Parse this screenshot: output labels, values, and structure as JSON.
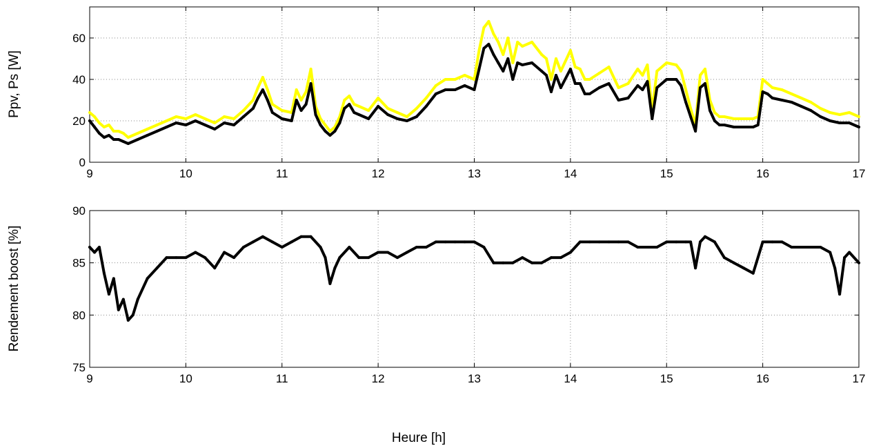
{
  "figure": {
    "xlabel": "Heure [h]"
  },
  "chart_data": [
    {
      "type": "line",
      "ylabel": "Ppv, Ps [W]",
      "xlim": [
        9,
        17
      ],
      "ylim": [
        0,
        75
      ],
      "xticks": [
        9,
        10,
        11,
        12,
        13,
        14,
        15,
        16,
        17
      ],
      "yticks": [
        0,
        20,
        40,
        60
      ],
      "grid": true,
      "colors": [
        "#ffff00",
        "#000000"
      ],
      "series": [
        {
          "x": [
            9.0,
            9.05,
            9.1,
            9.15,
            9.2,
            9.25,
            9.3,
            9.35,
            9.4,
            9.5,
            9.6,
            9.7,
            9.8,
            9.9,
            10.0,
            10.1,
            10.2,
            10.3,
            10.4,
            10.5,
            10.6,
            10.7,
            10.75,
            10.8,
            10.85,
            10.9,
            11.0,
            11.1,
            11.15,
            11.2,
            11.25,
            11.3,
            11.35,
            11.4,
            11.45,
            11.5,
            11.55,
            11.6,
            11.65,
            11.7,
            11.75,
            11.8,
            11.9,
            12.0,
            12.1,
            12.2,
            12.3,
            12.4,
            12.5,
            12.6,
            12.7,
            12.8,
            12.9,
            13.0,
            13.05,
            13.1,
            13.15,
            13.2,
            13.25,
            13.3,
            13.35,
            13.4,
            13.45,
            13.5,
            13.6,
            13.7,
            13.75,
            13.8,
            13.85,
            13.9,
            14.0,
            14.05,
            14.1,
            14.15,
            14.2,
            14.3,
            14.4,
            14.5,
            14.6,
            14.7,
            14.75,
            14.8,
            14.85,
            14.9,
            15.0,
            15.1,
            15.15,
            15.2,
            15.25,
            15.3,
            15.35,
            15.4,
            15.45,
            15.5,
            15.55,
            15.6,
            15.7,
            15.8,
            15.9,
            15.95,
            16.0,
            16.05,
            16.1,
            16.2,
            16.3,
            16.4,
            16.5,
            16.6,
            16.7,
            16.8,
            16.9,
            17.0
          ],
          "y": [
            24,
            22,
            19,
            17,
            18,
            15,
            15,
            14,
            12,
            14,
            16,
            18,
            20,
            22,
            21,
            23,
            21,
            19,
            22,
            21,
            25,
            30,
            36,
            41,
            35,
            28,
            25,
            24,
            35,
            30,
            34,
            45,
            27,
            21,
            18,
            15,
            17,
            22,
            30,
            32,
            28,
            27,
            25,
            31,
            26,
            24,
            22,
            26,
            31,
            37,
            40,
            40,
            42,
            40,
            54,
            65,
            68,
            62,
            58,
            52,
            60,
            48,
            58,
            56,
            58,
            52,
            50,
            40,
            50,
            44,
            54,
            46,
            45,
            40,
            40,
            43,
            46,
            36,
            38,
            45,
            42,
            47,
            25,
            44,
            48,
            47,
            44,
            35,
            26,
            18,
            42,
            45,
            30,
            24,
            22,
            22,
            21,
            21,
            21,
            22,
            40,
            38,
            36,
            35,
            33,
            31,
            29,
            26,
            24,
            23,
            24,
            22
          ]
        },
        {
          "x": [
            9.0,
            9.05,
            9.1,
            9.15,
            9.2,
            9.25,
            9.3,
            9.35,
            9.4,
            9.5,
            9.6,
            9.7,
            9.8,
            9.9,
            10.0,
            10.1,
            10.2,
            10.3,
            10.4,
            10.5,
            10.6,
            10.7,
            10.75,
            10.8,
            10.85,
            10.9,
            11.0,
            11.1,
            11.15,
            11.2,
            11.25,
            11.3,
            11.35,
            11.4,
            11.45,
            11.5,
            11.55,
            11.6,
            11.65,
            11.7,
            11.75,
            11.8,
            11.9,
            12.0,
            12.1,
            12.2,
            12.3,
            12.4,
            12.5,
            12.6,
            12.7,
            12.8,
            12.9,
            13.0,
            13.05,
            13.1,
            13.15,
            13.2,
            13.25,
            13.3,
            13.35,
            13.4,
            13.45,
            13.5,
            13.6,
            13.7,
            13.75,
            13.8,
            13.85,
            13.9,
            14.0,
            14.05,
            14.1,
            14.15,
            14.2,
            14.3,
            14.4,
            14.5,
            14.6,
            14.7,
            14.75,
            14.8,
            14.85,
            14.9,
            15.0,
            15.1,
            15.15,
            15.2,
            15.25,
            15.3,
            15.35,
            15.4,
            15.45,
            15.5,
            15.55,
            15.6,
            15.7,
            15.8,
            15.9,
            15.95,
            16.0,
            16.05,
            16.1,
            16.2,
            16.3,
            16.4,
            16.5,
            16.6,
            16.7,
            16.8,
            16.9,
            17.0
          ],
          "y": [
            20,
            17,
            14,
            12,
            13,
            11,
            11,
            10,
            9,
            11,
            13,
            15,
            17,
            19,
            18,
            20,
            18,
            16,
            19,
            18,
            22,
            26,
            31,
            35,
            30,
            24,
            21,
            20,
            30,
            25,
            28,
            38,
            23,
            18,
            15,
            13,
            15,
            19,
            26,
            28,
            24,
            23,
            21,
            27,
            23,
            21,
            20,
            22,
            27,
            33,
            35,
            35,
            37,
            35,
            45,
            55,
            57,
            52,
            48,
            44,
            50,
            40,
            48,
            47,
            48,
            44,
            42,
            34,
            42,
            36,
            45,
            38,
            38,
            33,
            33,
            36,
            38,
            30,
            31,
            37,
            35,
            39,
            21,
            36,
            40,
            40,
            37,
            29,
            22,
            15,
            36,
            38,
            25,
            20,
            18,
            18,
            17,
            17,
            17,
            18,
            34,
            33,
            31,
            30,
            29,
            27,
            25,
            22,
            20,
            19,
            19,
            17
          ]
        }
      ]
    },
    {
      "type": "line",
      "ylabel": "Rendement boost [%]",
      "xlim": [
        9,
        17
      ],
      "ylim": [
        75,
        90
      ],
      "xticks": [
        9,
        10,
        11,
        12,
        13,
        14,
        15,
        16,
        17
      ],
      "yticks": [
        75,
        80,
        85,
        90
      ],
      "grid": true,
      "colors": [
        "#000000"
      ],
      "series": [
        {
          "x": [
            9.0,
            9.05,
            9.1,
            9.15,
            9.2,
            9.25,
            9.3,
            9.35,
            9.4,
            9.45,
            9.5,
            9.6,
            9.7,
            9.8,
            9.9,
            10.0,
            10.1,
            10.2,
            10.3,
            10.4,
            10.5,
            10.6,
            10.7,
            10.8,
            10.9,
            11.0,
            11.1,
            11.2,
            11.3,
            11.4,
            11.45,
            11.5,
            11.55,
            11.6,
            11.7,
            11.8,
            11.9,
            12.0,
            12.1,
            12.2,
            12.3,
            12.4,
            12.5,
            12.6,
            12.7,
            12.8,
            12.9,
            13.0,
            13.1,
            13.2,
            13.3,
            13.4,
            13.5,
            13.6,
            13.7,
            13.8,
            13.9,
            14.0,
            14.1,
            14.2,
            14.3,
            14.4,
            14.5,
            14.6,
            14.7,
            14.8,
            14.9,
            15.0,
            15.1,
            15.2,
            15.25,
            15.3,
            15.35,
            15.4,
            15.5,
            15.6,
            15.7,
            15.8,
            15.9,
            16.0,
            16.1,
            16.2,
            16.3,
            16.4,
            16.5,
            16.6,
            16.7,
            16.75,
            16.8,
            16.85,
            16.9,
            17.0
          ],
          "y": [
            86.5,
            86.0,
            86.5,
            84.0,
            82.0,
            83.5,
            80.5,
            81.5,
            79.5,
            80.0,
            81.5,
            83.5,
            84.5,
            85.5,
            85.5,
            85.5,
            86.0,
            85.5,
            84.5,
            86.0,
            85.5,
            86.5,
            87.0,
            87.5,
            87.0,
            86.5,
            87.0,
            87.5,
            87.5,
            86.5,
            85.5,
            83.0,
            84.5,
            85.5,
            86.5,
            85.5,
            85.5,
            86.0,
            86.0,
            85.5,
            86.0,
            86.5,
            86.5,
            87.0,
            87.0,
            87.0,
            87.0,
            87.0,
            86.5,
            85.0,
            85.0,
            85.0,
            85.5,
            85.0,
            85.0,
            85.5,
            85.5,
            86.0,
            87.0,
            87.0,
            87.0,
            87.0,
            87.0,
            87.0,
            86.5,
            86.5,
            86.5,
            87.0,
            87.0,
            87.0,
            87.0,
            84.5,
            87.0,
            87.5,
            87.0,
            85.5,
            85.0,
            84.5,
            84.0,
            87.0,
            87.0,
            87.0,
            86.5,
            86.5,
            86.5,
            86.5,
            86.0,
            84.5,
            82.0,
            85.5,
            86.0,
            85.0
          ]
        }
      ]
    }
  ]
}
